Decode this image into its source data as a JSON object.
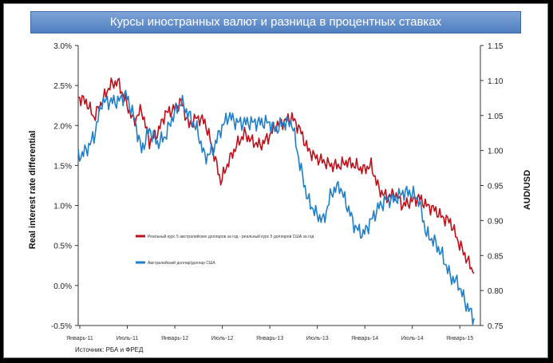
{
  "title": "Курсы иностранных валют и разница в процентных ставках",
  "source": "Источник: РБА и ФРЕД",
  "colors": {
    "red": "#c0101a",
    "blue": "#1f7fc8",
    "title_bg": "#5b88c6"
  },
  "chart_data": {
    "type": "line",
    "title": "Курсы иностранных валют и разница в процентных ставках",
    "ylabel_left": "Real interest rate differential",
    "ylabel_right": "AUD/USD",
    "xlabel": "",
    "y_left_lim": [
      -0.5,
      3.0
    ],
    "y_right_lim": [
      0.75,
      1.15
    ],
    "y_left_ticks": [
      "-0.5%",
      "0.0%",
      "0.5%",
      "1.0%",
      "1.5%",
      "2.0%",
      "2.5%",
      "3.0%"
    ],
    "y_right_ticks": [
      "0.75",
      "0.80",
      "0.85",
      "0.90",
      "0.95",
      "1.00",
      "1.05",
      "1.10",
      "1.15"
    ],
    "x_tick_labels": [
      "Январь-11",
      "Июль-11",
      "Январь-12",
      "Июль-12",
      "Январь-13",
      "Июль-13",
      "Январь-14",
      "Июль-14",
      "Январь-15"
    ],
    "grid": false,
    "legend_position": "middle-left",
    "series": [
      {
        "name": "Реальный курс 5 австралийских долларов за год - реальный курс 5 долларов США за год",
        "axis": "left",
        "color": "#c0101a",
        "x": [
          "2011-01",
          "2011-02",
          "2011-03",
          "2011-04",
          "2011-05",
          "2011-06",
          "2011-07",
          "2011-08",
          "2011-09",
          "2011-10",
          "2011-11",
          "2011-12",
          "2012-01",
          "2012-02",
          "2012-03",
          "2012-04",
          "2012-05",
          "2012-06",
          "2012-07",
          "2012-08",
          "2012-09",
          "2012-10",
          "2012-11",
          "2012-12",
          "2013-01",
          "2013-02",
          "2013-03",
          "2013-04",
          "2013-05",
          "2013-06",
          "2013-07",
          "2013-08",
          "2013-09",
          "2013-10",
          "2013-11",
          "2013-12",
          "2014-01",
          "2014-02",
          "2014-03",
          "2014-04",
          "2014-05",
          "2014-06",
          "2014-07",
          "2014-08",
          "2014-09",
          "2014-10",
          "2014-11",
          "2014-12",
          "2015-01",
          "2015-02",
          "2015-03"
        ],
        "values": [
          2.35,
          2.3,
          2.1,
          2.3,
          2.5,
          2.55,
          2.3,
          2.05,
          2.2,
          1.8,
          1.9,
          2.15,
          2.2,
          2.3,
          2.0,
          2.1,
          2.05,
          1.7,
          1.3,
          1.55,
          1.75,
          1.9,
          1.8,
          1.75,
          1.85,
          2.0,
          2.05,
          2.1,
          1.95,
          1.7,
          1.6,
          1.55,
          1.5,
          1.5,
          1.55,
          1.5,
          1.45,
          1.5,
          1.2,
          1.1,
          1.15,
          1.0,
          1.05,
          1.1,
          1.0,
          0.95,
          0.85,
          0.8,
          0.55,
          0.35,
          0.15
        ]
      },
      {
        "name": "Австралийский доллар/доллар США",
        "axis": "right",
        "color": "#1f7fc8",
        "x": [
          "2011-01",
          "2011-02",
          "2011-03",
          "2011-04",
          "2011-05",
          "2011-06",
          "2011-07",
          "2011-08",
          "2011-09",
          "2011-10",
          "2011-11",
          "2011-12",
          "2012-01",
          "2012-02",
          "2012-03",
          "2012-04",
          "2012-05",
          "2012-06",
          "2012-07",
          "2012-08",
          "2012-09",
          "2012-10",
          "2012-11",
          "2012-12",
          "2013-01",
          "2013-02",
          "2013-03",
          "2013-04",
          "2013-05",
          "2013-06",
          "2013-07",
          "2013-08",
          "2013-09",
          "2013-10",
          "2013-11",
          "2013-12",
          "2014-01",
          "2014-02",
          "2014-03",
          "2014-04",
          "2014-05",
          "2014-06",
          "2014-07",
          "2014-08",
          "2014-09",
          "2014-10",
          "2014-11",
          "2014-12",
          "2015-01",
          "2015-02",
          "2015-03"
        ],
        "values": [
          0.99,
          1.0,
          1.02,
          1.07,
          1.07,
          1.07,
          1.08,
          1.05,
          1.0,
          1.03,
          1.01,
          1.02,
          1.05,
          1.07,
          1.05,
          1.03,
          0.99,
          1.0,
          1.03,
          1.05,
          1.04,
          1.04,
          1.04,
          1.04,
          1.04,
          1.03,
          1.04,
          1.04,
          0.98,
          0.93,
          0.91,
          0.9,
          0.94,
          0.95,
          0.92,
          0.89,
          0.88,
          0.9,
          0.92,
          0.93,
          0.93,
          0.94,
          0.94,
          0.93,
          0.88,
          0.87,
          0.85,
          0.82,
          0.81,
          0.78,
          0.76
        ]
      }
    ]
  }
}
